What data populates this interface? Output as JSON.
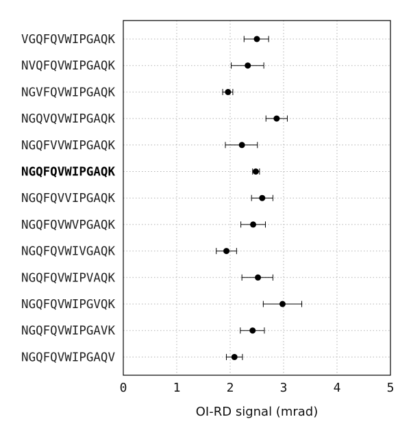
{
  "chart_data": {
    "type": "scatter",
    "title": "",
    "xlabel": "OI-RD signal (mrad)",
    "ylabel": "",
    "xlim": [
      0,
      5
    ],
    "xticks": [
      "0",
      "1",
      "2",
      "3",
      "4",
      "5"
    ],
    "grid": true,
    "highlighted_category": "NGQFQVWIPGAQK",
    "points": [
      {
        "label": "VGQFQVWIPGAQK",
        "value": 2.5,
        "err_low": 2.26,
        "err_high": 2.72
      },
      {
        "label": "NVQFQVWIPGAQK",
        "value": 2.33,
        "err_low": 2.02,
        "err_high": 2.63
      },
      {
        "label": "NGVFQVWIPGAQK",
        "value": 1.96,
        "err_low": 1.86,
        "err_high": 2.05
      },
      {
        "label": "NGQVQVWIPGAQK",
        "value": 2.87,
        "err_low": 2.67,
        "err_high": 3.07
      },
      {
        "label": "NGQFVVWIPGAQK",
        "value": 2.22,
        "err_low": 1.91,
        "err_high": 2.51
      },
      {
        "label": "NGQFQVWIPGAQK",
        "value": 2.48,
        "err_low": 2.42,
        "err_high": 2.55
      },
      {
        "label": "NGQFQVVIPGAQK",
        "value": 2.6,
        "err_low": 2.4,
        "err_high": 2.8
      },
      {
        "label": "NGQFQVWVPGAQK",
        "value": 2.43,
        "err_low": 2.2,
        "err_high": 2.66
      },
      {
        "label": "NGQFQVWIVGAQK",
        "value": 1.93,
        "err_low": 1.74,
        "err_high": 2.12
      },
      {
        "label": "NGQFQVWIPVAQK",
        "value": 2.52,
        "err_low": 2.22,
        "err_high": 2.8
      },
      {
        "label": "NGQFQVWIPGVQK",
        "value": 2.98,
        "err_low": 2.62,
        "err_high": 3.34
      },
      {
        "label": "NGQFQVWIPGAVK",
        "value": 2.42,
        "err_low": 2.19,
        "err_high": 2.64
      },
      {
        "label": "NGQFQVWIPGAQV",
        "value": 2.08,
        "err_low": 1.93,
        "err_high": 2.23
      }
    ]
  }
}
